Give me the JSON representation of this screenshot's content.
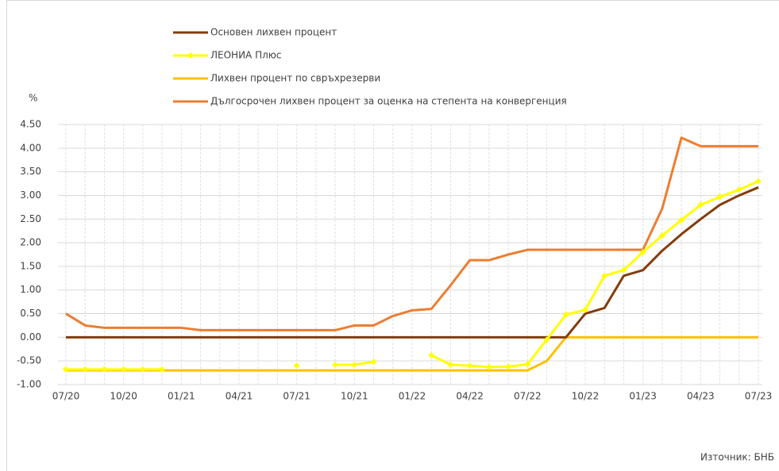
{
  "chart_data": {
    "type": "line",
    "y_label": "%",
    "source": "Източник: БНБ",
    "categories": [
      "07/20",
      null,
      null,
      "10/20",
      null,
      null,
      "01/21",
      null,
      null,
      "04/21",
      null,
      null,
      "07/21",
      null,
      null,
      "10/21",
      null,
      null,
      "01/22",
      null,
      null,
      "04/22",
      null,
      null,
      "07/22",
      null,
      null,
      "10/22",
      null,
      null,
      "01/23",
      null,
      null,
      "04/23",
      null,
      null,
      "07/23"
    ],
    "ylim": [
      -1,
      4.5
    ],
    "yticks": [
      {
        "value": -1,
        "label": "-1.00"
      },
      {
        "value": -0.5,
        "label": "-0.50"
      },
      {
        "value": 0,
        "label": "0.00"
      },
      {
        "value": 0.5,
        "label": "0.50"
      },
      {
        "value": 1,
        "label": "1.00"
      },
      {
        "value": 1.5,
        "label": "1.50"
      },
      {
        "value": 2,
        "label": "2.00"
      },
      {
        "value": 2.5,
        "label": "2.50"
      },
      {
        "value": 3,
        "label": "3.00"
      },
      {
        "value": 3.5,
        "label": "3.50"
      },
      {
        "value": 4,
        "label": "4.00"
      },
      {
        "value": 4.5,
        "label": "4.50"
      }
    ],
    "grid": true,
    "series": [
      {
        "name": "Основен лихвен процент",
        "color": "#843c0c",
        "values": [
          0,
          0,
          0,
          0,
          0,
          0,
          0,
          0,
          0,
          0,
          0,
          0,
          0,
          0,
          0,
          0,
          0,
          0,
          0,
          0,
          0,
          0,
          0,
          0,
          0,
          0,
          0,
          0.5,
          0.62,
          1.3,
          1.42,
          1.83,
          2.18,
          2.5,
          2.8,
          3.0,
          3.17
        ]
      },
      {
        "name": "ЛЕОНИА Плюс",
        "color": "#ffff00",
        "markers": true,
        "values": [
          -0.68,
          -0.68,
          -0.68,
          -0.68,
          -0.68,
          -0.68,
          null,
          null,
          null,
          null,
          null,
          null,
          -0.6,
          null,
          -0.58,
          -0.58,
          -0.52,
          null,
          null,
          -0.38,
          -0.58,
          -0.6,
          -0.63,
          -0.62,
          -0.57,
          -0.05,
          0.48,
          0.58,
          1.3,
          1.42,
          1.8,
          2.15,
          2.48,
          2.8,
          2.97,
          3.12,
          3.3
        ]
      },
      {
        "name": "Лихвен процент по свръхрезерви",
        "color": "#ffc000",
        "values": [
          -0.7,
          -0.7,
          -0.7,
          -0.7,
          -0.7,
          -0.7,
          -0.7,
          -0.7,
          -0.7,
          -0.7,
          -0.7,
          -0.7,
          -0.7,
          -0.7,
          -0.7,
          -0.7,
          -0.7,
          -0.7,
          -0.7,
          -0.7,
          -0.7,
          -0.7,
          -0.7,
          -0.7,
          -0.7,
          -0.5,
          0,
          0,
          0,
          0,
          0,
          0,
          0,
          0,
          0,
          0,
          0
        ]
      },
      {
        "name": "Дългосрочен лихвен процент за оценка на степента на конвергенция",
        "color": "#ed7d31",
        "values": [
          0.5,
          0.25,
          0.2,
          0.2,
          0.2,
          0.2,
          0.2,
          0.15,
          0.15,
          0.15,
          0.15,
          0.15,
          0.15,
          0.15,
          0.15,
          0.25,
          0.25,
          0.45,
          0.57,
          0.6,
          1.1,
          1.63,
          1.63,
          1.75,
          1.85,
          1.85,
          1.85,
          1.85,
          1.85,
          1.85,
          1.85,
          2.72,
          4.22,
          4.04,
          4.04,
          4.04,
          4.04
        ]
      }
    ]
  }
}
